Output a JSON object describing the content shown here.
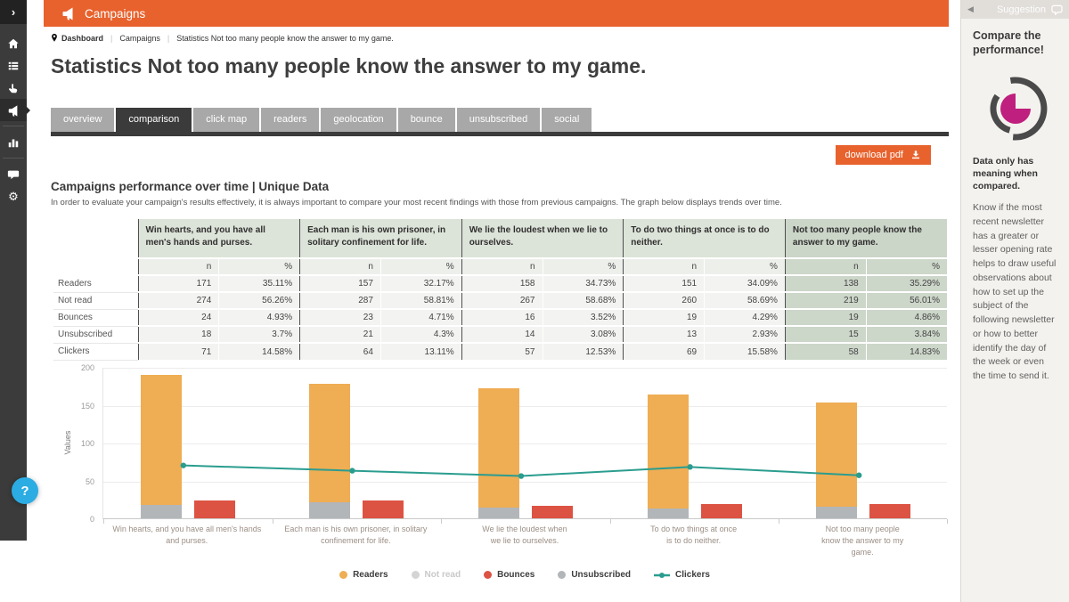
{
  "app": {
    "title": "Campaigns"
  },
  "sidebar": {
    "items": [
      {
        "id": "collapse",
        "icon": "chevron-right-icon"
      },
      {
        "id": "home",
        "icon": "home-icon"
      },
      {
        "id": "lists",
        "icon": "list-icon"
      },
      {
        "id": "subscribers",
        "icon": "hand-pointer-icon"
      },
      {
        "id": "campaigns",
        "icon": "megaphone-icon",
        "active": true
      },
      {
        "id": "statistics",
        "icon": "bar-chart-icon"
      },
      {
        "id": "messages",
        "icon": "chat-bubble-icon"
      },
      {
        "id": "settings",
        "icon": "gear-icon"
      }
    ]
  },
  "breadcrumb": {
    "separator": "|",
    "items": [
      "Dashboard",
      "Campaigns",
      "Statistics Not too many people know the answer to my game."
    ]
  },
  "page": {
    "title": "Statistics Not too many people know the answer to my game."
  },
  "tabs": [
    {
      "label": "overview"
    },
    {
      "label": "comparison",
      "active": true
    },
    {
      "label": "click map"
    },
    {
      "label": "readers"
    },
    {
      "label": "geolocation"
    },
    {
      "label": "bounce"
    },
    {
      "label": "unsubscribed"
    },
    {
      "label": "social"
    }
  ],
  "toolbar": {
    "download_pdf": "download pdf"
  },
  "section": {
    "title": "Campaigns performance over time | Unique Data",
    "description": "In order to evaluate your campaign's results effectively, it is always important to compare your most recent findings with those from previous campaigns. The graph below displays trends over time."
  },
  "table": {
    "campaigns": [
      "Win hearts, and you have all men's hands and purses.",
      "Each man is his own prisoner, in solitary confinement for life.",
      "We lie the loudest when we lie to ourselves.",
      "To do two things at once is to do neither.",
      "Not too many people know the answer to my game."
    ],
    "highlighted_campaign_index": 4,
    "subheaders": [
      "n",
      "%"
    ],
    "rows": [
      {
        "label": "Readers",
        "values": [
          [
            "171",
            "35.11%"
          ],
          [
            "157",
            "32.17%"
          ],
          [
            "158",
            "34.73%"
          ],
          [
            "151",
            "34.09%"
          ],
          [
            "138",
            "35.29%"
          ]
        ]
      },
      {
        "label": "Not read",
        "values": [
          [
            "274",
            "56.26%"
          ],
          [
            "287",
            "58.81%"
          ],
          [
            "267",
            "58.68%"
          ],
          [
            "260",
            "58.69%"
          ],
          [
            "219",
            "56.01%"
          ]
        ]
      },
      {
        "label": "Bounces",
        "values": [
          [
            "24",
            "4.93%"
          ],
          [
            "23",
            "4.71%"
          ],
          [
            "16",
            "3.52%"
          ],
          [
            "19",
            "4.29%"
          ],
          [
            "19",
            "4.86%"
          ]
        ]
      },
      {
        "label": "Unsubscribed",
        "values": [
          [
            "18",
            "3.7%"
          ],
          [
            "21",
            "4.3%"
          ],
          [
            "14",
            "3.08%"
          ],
          [
            "13",
            "2.93%"
          ],
          [
            "15",
            "3.84%"
          ]
        ]
      },
      {
        "label": "Clickers",
        "values": [
          [
            "71",
            "14.58%"
          ],
          [
            "64",
            "13.11%"
          ],
          [
            "57",
            "12.53%"
          ],
          [
            "69",
            "15.58%"
          ],
          [
            "58",
            "14.83%"
          ]
        ]
      }
    ]
  },
  "chart_data": {
    "type": "bar",
    "subtype": "stacked bars with overlay line",
    "categories": [
      "Win hearts, and you have all men's hands and purses.",
      "Each man is his own prisoner, in solitary confinement for life.",
      "We lie the loudest when we lie to ourselves.",
      "To do two things at once is to do neither.",
      "Not too many people know the answer to my game."
    ],
    "series": [
      {
        "name": "Readers",
        "type": "bar",
        "stack": "main",
        "color": "#efad54",
        "values": [
          171,
          157,
          158,
          151,
          138
        ]
      },
      {
        "name": "Not read",
        "type": "bar",
        "hidden": true,
        "color": "#d9d9d9",
        "values": [
          274,
          287,
          267,
          260,
          219
        ]
      },
      {
        "name": "Bounces",
        "type": "bar",
        "color": "#dd5343",
        "values": [
          24,
          23,
          16,
          19,
          19
        ]
      },
      {
        "name": "Unsubscribed",
        "type": "bar",
        "stack": "main",
        "color": "#b2b6b9",
        "values": [
          18,
          21,
          14,
          13,
          15
        ]
      },
      {
        "name": "Clickers",
        "type": "line",
        "color": "#2a9d8f",
        "values": [
          71,
          64,
          57,
          69,
          58
        ]
      }
    ],
    "ylabel": "Values",
    "xlabel": "",
    "ylim": [
      0,
      200
    ],
    "yticks": [
      0,
      50,
      100,
      150,
      200
    ],
    "grid": true,
    "legend_position": "bottom"
  },
  "suggestion": {
    "header": "Suggestion",
    "title": "Compare the performance!",
    "subtitle": "Data only has meaning when compared.",
    "body": "Know if the most recent newsletter has a greater or lesser opening rate helps to draw useful observations about how to set up the subject of the following newsletter or how to better identify the day of the week or even the time to send it."
  },
  "help": {
    "label": "?"
  },
  "colors": {
    "accent_orange": "#e8622d",
    "rail_dark": "#3b3b3b",
    "tab_gray": "#a8a8a8",
    "table_header_green": "#dce3d8",
    "table_highlight_green": "#ccd6c9",
    "readers_bar": "#efad54",
    "bounces_bar": "#dd5343",
    "unsubscribed_bar": "#b2b6b9",
    "clickers_line": "#2a9d8f",
    "suggestion_magenta": "#bf1f7e",
    "help_blue": "#2bace2"
  }
}
